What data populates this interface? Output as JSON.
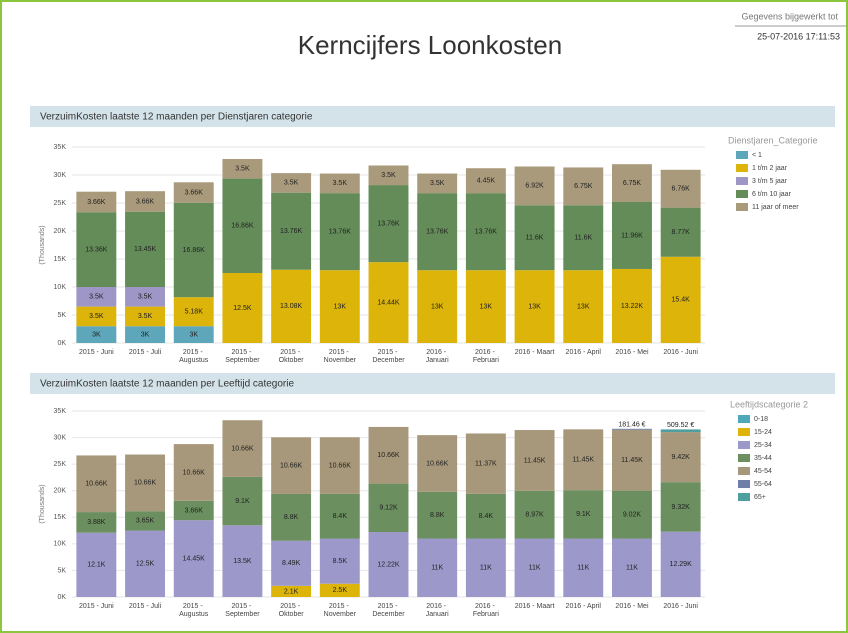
{
  "header": {
    "title": "Kerncijfers Loonkosten",
    "update_label": "Gegevens bijgewerkt tot",
    "update_time": "25-07-2016 17:11:53"
  },
  "chart_data": [
    {
      "type": "bar",
      "stacked": true,
      "title": "VerzuimKosten laatste 12 maanden per Dienstjaren categorie",
      "ylabel": "(Thousands)",
      "legend_title": "Dienstjaren_Categorie",
      "legend": "right",
      "grid": true,
      "categories": [
        "2015 - Juni",
        "2015 - Juli",
        "2015 - Augustus",
        "2015 - September",
        "2015 - Oktober",
        "2015 - November",
        "2015 - December",
        "2016 - Januari",
        "2016 - Februari",
        "2016 - Maart",
        "2016 - April",
        "2016 - Mei",
        "2016 - Juni"
      ],
      "ylim": [
        0,
        35
      ],
      "yticks": [
        {
          "value": 0,
          "label": "0K"
        },
        {
          "value": 5,
          "label": "5K"
        },
        {
          "value": 10,
          "label": "10K"
        },
        {
          "value": 15,
          "label": "15K"
        },
        {
          "value": 20,
          "label": "20K"
        },
        {
          "value": 25,
          "label": "25K"
        },
        {
          "value": 30,
          "label": "30K"
        },
        {
          "value": 35,
          "label": "35K"
        }
      ],
      "series": [
        {
          "name": "< 1",
          "color": "#5ea6ba",
          "values": [
            3,
            3,
            3,
            null,
            null,
            null,
            null,
            null,
            null,
            null,
            null,
            null,
            null
          ],
          "value_labels": [
            "3K",
            "3K",
            "3K",
            null,
            null,
            null,
            null,
            null,
            null,
            null,
            null,
            null,
            null
          ]
        },
        {
          "name": "1 t/m 2 jaar",
          "color": "#dcb40a",
          "values": [
            3.5,
            3.5,
            5.18,
            12.5,
            13.08,
            13,
            14.44,
            13,
            13,
            13,
            13,
            13.22,
            15.4
          ],
          "value_labels": [
            "3.5K",
            "3.5K",
            "5.18K",
            "12.5K",
            "13.08K",
            "13K",
            "14.44K",
            "13K",
            "13K",
            "13K",
            "13K",
            "13.22K",
            "15.4K"
          ]
        },
        {
          "name": "3 t/m 5 jaar",
          "color": "#9d96c6",
          "values": [
            3.5,
            3.5,
            null,
            null,
            null,
            null,
            null,
            null,
            null,
            null,
            null,
            null,
            null
          ],
          "value_labels": [
            "3.5K",
            "3.5K",
            null,
            null,
            null,
            null,
            null,
            null,
            null,
            null,
            null,
            null,
            null
          ]
        },
        {
          "name": "6 t/m 10 jaar",
          "color": "#638c58",
          "values": [
            13.36,
            13.45,
            16.86,
            16.86,
            13.76,
            13.76,
            13.76,
            13.76,
            13.76,
            11.6,
            11.6,
            11.96,
            8.77
          ],
          "value_labels": [
            "13.36K",
            "13.45K",
            "16.86K",
            "16.86K",
            "13.76K",
            "13.76K",
            "13.76K",
            "13.76K",
            "13.76K",
            "11.6K",
            "11.6K",
            "11.96K",
            "8.77K"
          ]
        },
        {
          "name": "11 jaar of meer",
          "color": "#a99a7c",
          "values": [
            3.66,
            3.66,
            3.66,
            3.5,
            3.5,
            3.5,
            3.5,
            3.5,
            4.45,
            6.92,
            6.75,
            6.75,
            6.76
          ],
          "value_labels": [
            "3.66K",
            "3.66K",
            "3.66K",
            "3.5K",
            "3.5K",
            "3.5K",
            "3.5K",
            "3.5K",
            "4.45K",
            "6.92K",
            "6.75K",
            "6.75K",
            "6.76K"
          ]
        }
      ]
    },
    {
      "type": "bar",
      "stacked": true,
      "title": "VerzuimKosten laatste 12 maanden per Leeftijd categorie",
      "ylabel": "(Thousands)",
      "legend_title": "Leeftijdscategorie 2",
      "legend": "right",
      "grid": true,
      "categories": [
        "2015 - Juni",
        "2015 - Juli",
        "2015 - Augustus",
        "2015 - September",
        "2015 - Oktober",
        "2015 - November",
        "2015 - December",
        "2016 - Januari",
        "2016 - Februari",
        "2016 - Maart",
        "2016 - April",
        "2016 - Mei",
        "2016 - Juni"
      ],
      "ylim": [
        0,
        35
      ],
      "yticks": [
        {
          "value": 0,
          "label": "0K"
        },
        {
          "value": 5,
          "label": "5K"
        },
        {
          "value": 10,
          "label": "10K"
        },
        {
          "value": 15,
          "label": "15K"
        },
        {
          "value": 20,
          "label": "20K"
        },
        {
          "value": 25,
          "label": "25K"
        },
        {
          "value": 30,
          "label": "30K"
        },
        {
          "value": 35,
          "label": "35K"
        }
      ],
      "series": [
        {
          "name": "0-18",
          "color": "#4fa8ba",
          "values": [
            null,
            null,
            null,
            null,
            null,
            null,
            null,
            null,
            null,
            null,
            null,
            null,
            null
          ]
        },
        {
          "name": "15-24",
          "color": "#dcb40a",
          "values": [
            null,
            null,
            null,
            null,
            2.1,
            2.5,
            null,
            null,
            null,
            null,
            null,
            null,
            null
          ],
          "value_labels": [
            null,
            null,
            null,
            null,
            "2.1K",
            "2.5K",
            null,
            null,
            null,
            null,
            null,
            null,
            null
          ]
        },
        {
          "name": "25-34",
          "color": "#9c98ca",
          "values": [
            12.1,
            12.5,
            14.45,
            13.5,
            8.49,
            8.5,
            12.22,
            11,
            11,
            11,
            11,
            11,
            12.29
          ],
          "value_labels": [
            "12.1K",
            "12.5K",
            "14.45K",
            "13.5K",
            "8.49K",
            "8.5K",
            "12.22K",
            "11K",
            "11K",
            "11K",
            "11K",
            "11K",
            "12.29K"
          ]
        },
        {
          "name": "35-44",
          "color": "#6b8f5f",
          "values": [
            3.88,
            3.65,
            3.66,
            9.1,
            8.8,
            8.4,
            9.12,
            8.8,
            8.4,
            8.97,
            9.1,
            9.02,
            9.32
          ],
          "value_labels": [
            "3.88K",
            "3.65K",
            "3.66K",
            "9.1K",
            "8.8K",
            "8.4K",
            "9.12K",
            "8.8K",
            "8.4K",
            "8.97K",
            "9.1K",
            "9.02K",
            "9.32K"
          ]
        },
        {
          "name": "45-54",
          "color": "#a8987b",
          "values": [
            10.66,
            10.66,
            10.66,
            10.66,
            10.66,
            10.66,
            10.66,
            10.66,
            11.37,
            11.45,
            11.45,
            11.45,
            9.42
          ],
          "value_labels": [
            "10.66K",
            "10.66K",
            "10.66K",
            "10.66K",
            "10.66K",
            "10.66K",
            "10.66K",
            "10.66K",
            "11.37K",
            "11.45K",
            "11.45K",
            "11.45K",
            "9.42K"
          ]
        },
        {
          "name": "55-64",
          "color": "#6e7ea6",
          "values": [
            null,
            null,
            null,
            null,
            null,
            null,
            null,
            null,
            null,
            null,
            null,
            0.18146,
            null
          ],
          "value_labels": [
            null,
            null,
            null,
            null,
            null,
            null,
            null,
            null,
            null,
            null,
            null,
            "181.46 €",
            null
          ]
        },
        {
          "name": "65+",
          "color": "#4f9ea0",
          "values": [
            null,
            null,
            null,
            null,
            null,
            null,
            null,
            null,
            null,
            null,
            null,
            null,
            0.50952
          ],
          "value_labels": [
            null,
            null,
            null,
            null,
            null,
            null,
            null,
            null,
            null,
            null,
            null,
            null,
            "509.52 €"
          ]
        }
      ]
    }
  ]
}
